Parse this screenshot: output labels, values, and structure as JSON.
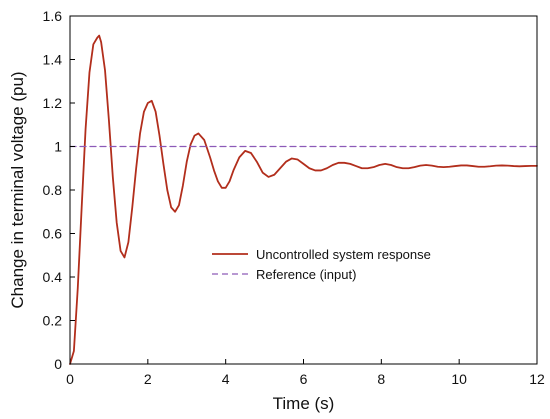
{
  "chart_data": {
    "type": "line",
    "xlabel": "Time (s)",
    "ylabel": "Change in terminal voltage (pu)",
    "xlim": [
      0,
      12
    ],
    "ylim": [
      0,
      1.6
    ],
    "x_ticks": [
      "0",
      "2",
      "4",
      "6",
      "8",
      "10",
      "12"
    ],
    "y_ticks": [
      "0",
      "0.2",
      "0.4",
      "0.6",
      "0.8",
      "1",
      "1.2",
      "1.4",
      "1.6"
    ],
    "grid": false,
    "legend_position": "center-right",
    "series": [
      {
        "name": "Uncontrolled system response",
        "style": "solid",
        "color": "#b22e1c",
        "x": [
          0,
          0.1,
          0.2,
          0.3,
          0.4,
          0.5,
          0.6,
          0.7,
          0.75,
          0.8,
          0.9,
          1.0,
          1.1,
          1.2,
          1.3,
          1.4,
          1.5,
          1.6,
          1.7,
          1.8,
          1.9,
          2.0,
          2.1,
          2.2,
          2.3,
          2.4,
          2.5,
          2.6,
          2.7,
          2.8,
          2.9,
          3.0,
          3.1,
          3.2,
          3.3,
          3.45,
          3.6,
          3.7,
          3.8,
          3.9,
          4.0,
          4.1,
          4.2,
          4.35,
          4.5,
          4.65,
          4.8,
          4.95,
          5.1,
          5.25,
          5.4,
          5.55,
          5.7,
          5.85,
          6.0,
          6.15,
          6.3,
          6.45,
          6.6,
          6.75,
          6.9,
          7.05,
          7.2,
          7.35,
          7.5,
          7.65,
          7.8,
          7.95,
          8.1,
          8.25,
          8.4,
          8.55,
          8.7,
          8.85,
          9.0,
          9.15,
          9.3,
          9.45,
          9.6,
          9.75,
          9.9,
          10.05,
          10.2,
          10.35,
          10.5,
          10.65,
          10.8,
          10.95,
          11.1,
          11.25,
          11.4,
          11.55,
          11.7,
          11.85,
          12.0
        ],
        "y": [
          0,
          0.06,
          0.35,
          0.72,
          1.08,
          1.34,
          1.47,
          1.5,
          1.51,
          1.48,
          1.35,
          1.12,
          0.86,
          0.65,
          0.52,
          0.49,
          0.56,
          0.72,
          0.9,
          1.06,
          1.16,
          1.2,
          1.21,
          1.16,
          1.05,
          0.92,
          0.8,
          0.72,
          0.7,
          0.73,
          0.82,
          0.93,
          1.01,
          1.05,
          1.06,
          1.03,
          0.95,
          0.89,
          0.84,
          0.81,
          0.81,
          0.84,
          0.89,
          0.95,
          0.98,
          0.97,
          0.93,
          0.88,
          0.86,
          0.87,
          0.9,
          0.93,
          0.945,
          0.94,
          0.92,
          0.9,
          0.89,
          0.89,
          0.9,
          0.915,
          0.925,
          0.925,
          0.92,
          0.91,
          0.9,
          0.9,
          0.905,
          0.915,
          0.92,
          0.915,
          0.905,
          0.9,
          0.9,
          0.905,
          0.912,
          0.915,
          0.912,
          0.907,
          0.905,
          0.907,
          0.91,
          0.913,
          0.913,
          0.91,
          0.907,
          0.907,
          0.909,
          0.912,
          0.913,
          0.912,
          0.91,
          0.909,
          0.91,
          0.911,
          0.911
        ]
      },
      {
        "name": "Reference (input)",
        "style": "dashed",
        "color": "#8d5ab8",
        "x": [
          0,
          12
        ],
        "y": [
          1,
          1
        ]
      }
    ]
  }
}
